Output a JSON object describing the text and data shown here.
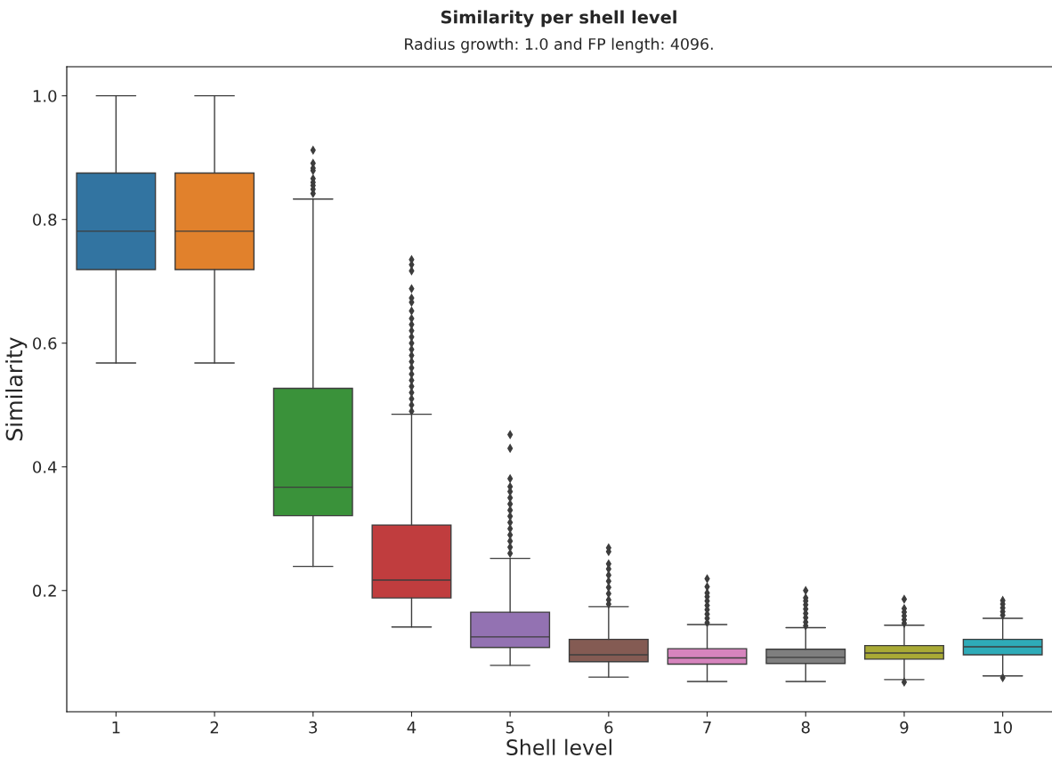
{
  "chart_data": {
    "type": "box",
    "title": "Similarity per shell level",
    "subtitle": "Radius growth: 1.0 and FP length: 4096.",
    "xlabel": "Shell level",
    "ylabel": "Similarity",
    "categories": [
      "1",
      "2",
      "3",
      "4",
      "5",
      "6",
      "7",
      "8",
      "9",
      "10"
    ],
    "colors": [
      "#3274a1",
      "#e1812c",
      "#3a923a",
      "#c03d3e",
      "#9372b2",
      "#845b53",
      "#d684bd",
      "#7f7f7f",
      "#a9aa35",
      "#2eabb8"
    ],
    "boxes": [
      {
        "low": 0.568,
        "q1": 0.719,
        "median": 0.781,
        "q3": 0.875,
        "high": 1.0
      },
      {
        "low": 0.568,
        "q1": 0.719,
        "median": 0.781,
        "q3": 0.875,
        "high": 1.0
      },
      {
        "low": 0.239,
        "q1": 0.321,
        "median": 0.367,
        "q3": 0.527,
        "high": 0.833,
        "outliers": [
          0.912,
          0.891,
          0.883,
          0.879,
          0.866,
          0.86,
          0.855,
          0.849,
          0.842
        ]
      },
      {
        "low": 0.141,
        "q1": 0.188,
        "median": 0.217,
        "q3": 0.306,
        "high": 0.485,
        "outliers": [
          0.735,
          0.727,
          0.717,
          0.688,
          0.673,
          0.666,
          0.652,
          0.64,
          0.63,
          0.62,
          0.61,
          0.6,
          0.59,
          0.58,
          0.57,
          0.56,
          0.55,
          0.54,
          0.53,
          0.52,
          0.51,
          0.5,
          0.49
        ]
      },
      {
        "low": 0.079,
        "q1": 0.108,
        "median": 0.125,
        "q3": 0.165,
        "high": 0.252,
        "outliers": [
          0.452,
          0.43,
          0.381,
          0.368,
          0.36,
          0.35,
          0.34,
          0.33,
          0.32,
          0.31,
          0.3,
          0.29,
          0.28,
          0.27,
          0.26
        ]
      },
      {
        "low": 0.06,
        "q1": 0.085,
        "median": 0.096,
        "q3": 0.121,
        "high": 0.174,
        "outliers": [
          0.269,
          0.263,
          0.243,
          0.235,
          0.225,
          0.215,
          0.205,
          0.195,
          0.185,
          0.178
        ]
      },
      {
        "low": 0.053,
        "q1": 0.081,
        "median": 0.091,
        "q3": 0.106,
        "high": 0.145,
        "outliers": [
          0.219,
          0.206,
          0.196,
          0.19,
          0.183,
          0.176,
          0.169,
          0.162,
          0.155,
          0.148
        ]
      },
      {
        "low": 0.053,
        "q1": 0.082,
        "median": 0.092,
        "q3": 0.105,
        "high": 0.14,
        "outliers": [
          0.2,
          0.188,
          0.183,
          0.177,
          0.17,
          0.163,
          0.156,
          0.149,
          0.143
        ]
      },
      {
        "low": 0.056,
        "q1": 0.089,
        "median": 0.099,
        "q3": 0.111,
        "high": 0.144,
        "outliers": [
          0.186,
          0.171,
          0.165,
          0.159,
          0.153,
          0.147,
          0.052
        ]
      },
      {
        "low": 0.062,
        "q1": 0.096,
        "median": 0.109,
        "q3": 0.121,
        "high": 0.155,
        "outliers": [
          0.184,
          0.178,
          0.172,
          0.166,
          0.16,
          0.059
        ]
      }
    ],
    "ylim": [
      0.004,
      1.047
    ],
    "yticks": [
      0.2,
      0.4,
      0.6,
      0.8,
      {
        "value": 1.0,
        "label": "1.0"
      }
    ],
    "grid": false,
    "marker": "diamond"
  }
}
